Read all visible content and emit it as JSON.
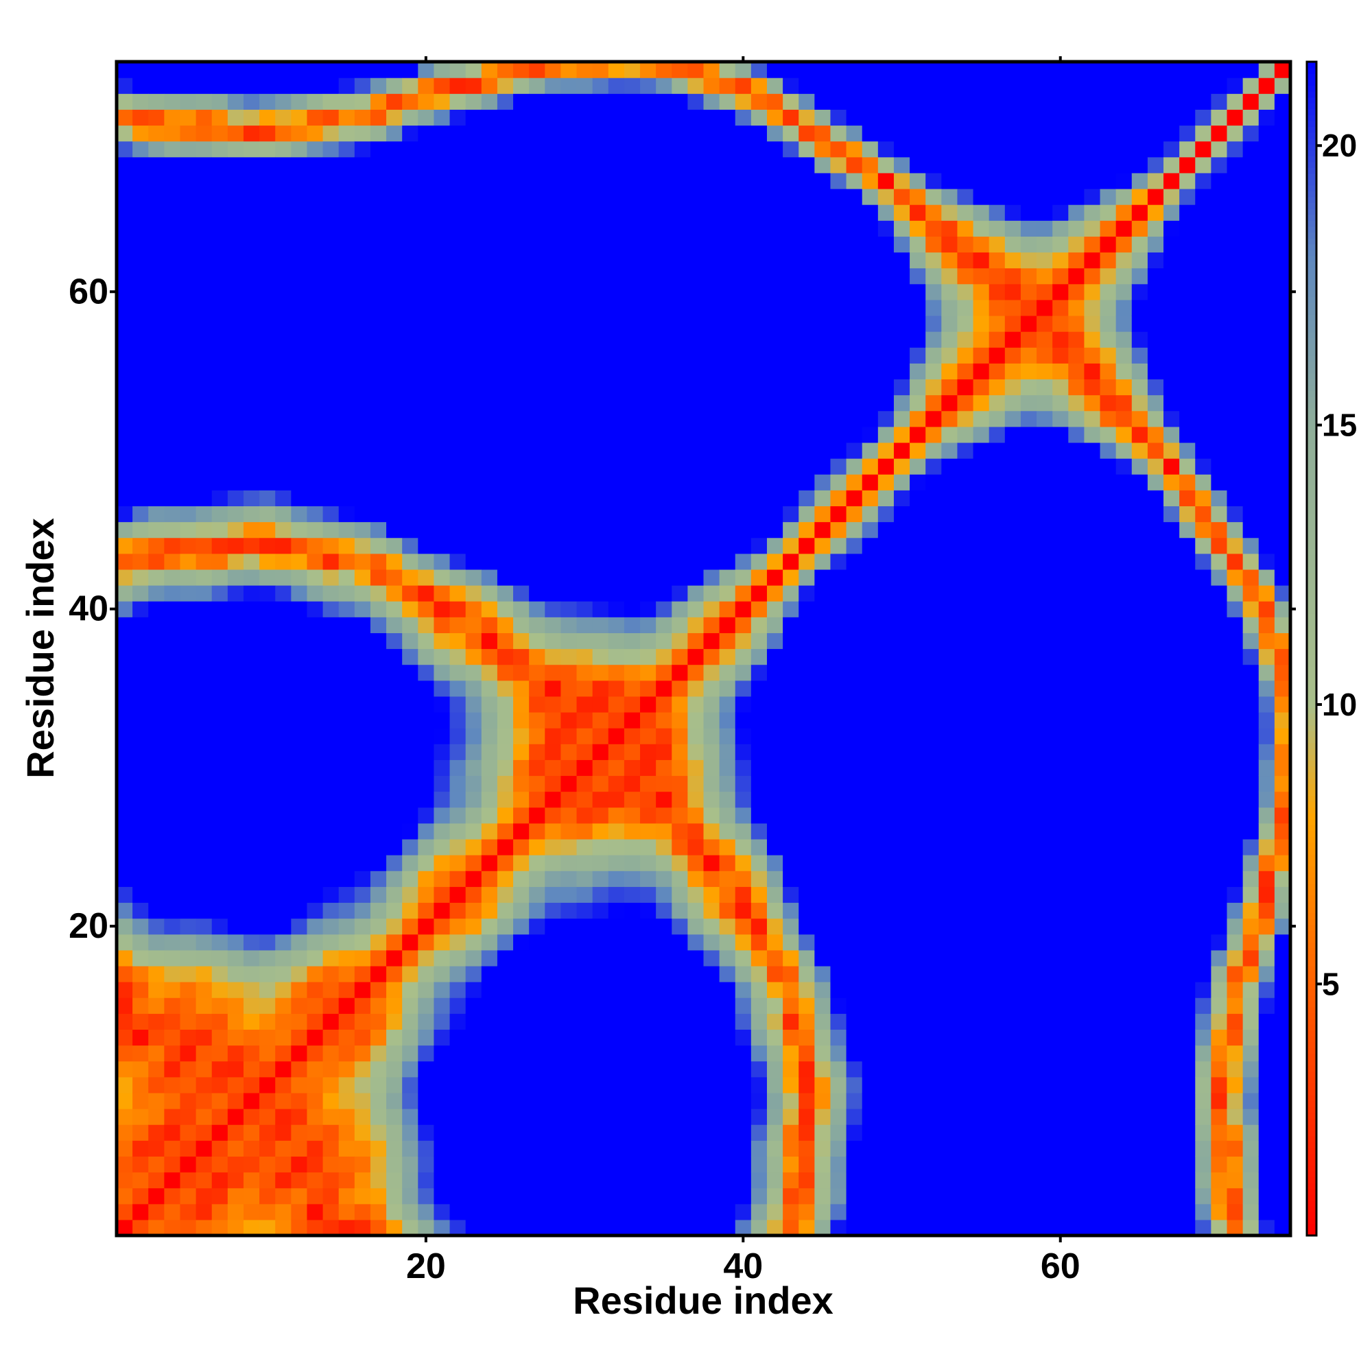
{
  "chart_data": {
    "type": "heatmap",
    "title": "",
    "xlabel": "Residue index",
    "ylabel": "Residue index",
    "n_residues": 74,
    "xlim": [
      0.5,
      74.5
    ],
    "ylim": [
      0.5,
      74.5
    ],
    "x_ticks": [
      20,
      40,
      60
    ],
    "y_ticks": [
      20,
      40,
      60
    ],
    "x_tick_labels": [
      "20",
      "40",
      "60"
    ],
    "y_tick_labels": [
      "20",
      "40",
      "60"
    ],
    "value_description": "pairwise residue distance; symmetric matrix, 0 on the diagonal",
    "colorbar": {
      "min": 0.5,
      "max": 21.5,
      "ticks": [
        5,
        10,
        15,
        20
      ],
      "tick_labels": [
        "5",
        "10",
        "15",
        "20"
      ],
      "placement": "right",
      "stops": [
        {
          "value": 0.5,
          "color": "#ff0000"
        },
        {
          "value": 6,
          "color": "#ff7700"
        },
        {
          "value": 8,
          "color": "#ffa500"
        },
        {
          "value": 10,
          "color": "#a9bf8a"
        },
        {
          "value": 15,
          "color": "#8fae9a"
        },
        {
          "value": 18,
          "color": "#5f88bf"
        },
        {
          "value": 21.5,
          "color": "#0000ff"
        }
      ]
    },
    "contact_threshold": 8,
    "saturation_distance": 19.5,
    "pattern": {
      "helix_pitch": 3.6,
      "helix_rise": 1.5,
      "repeat_length": 29,
      "fold_angle_period": 90,
      "fold_bend_amplitude": 20,
      "wobble_amplitude": 1.2
    },
    "grid": false,
    "legend": "colorbar-right"
  },
  "colors": {
    "frame": "#000000",
    "background": "#ffffff"
  }
}
